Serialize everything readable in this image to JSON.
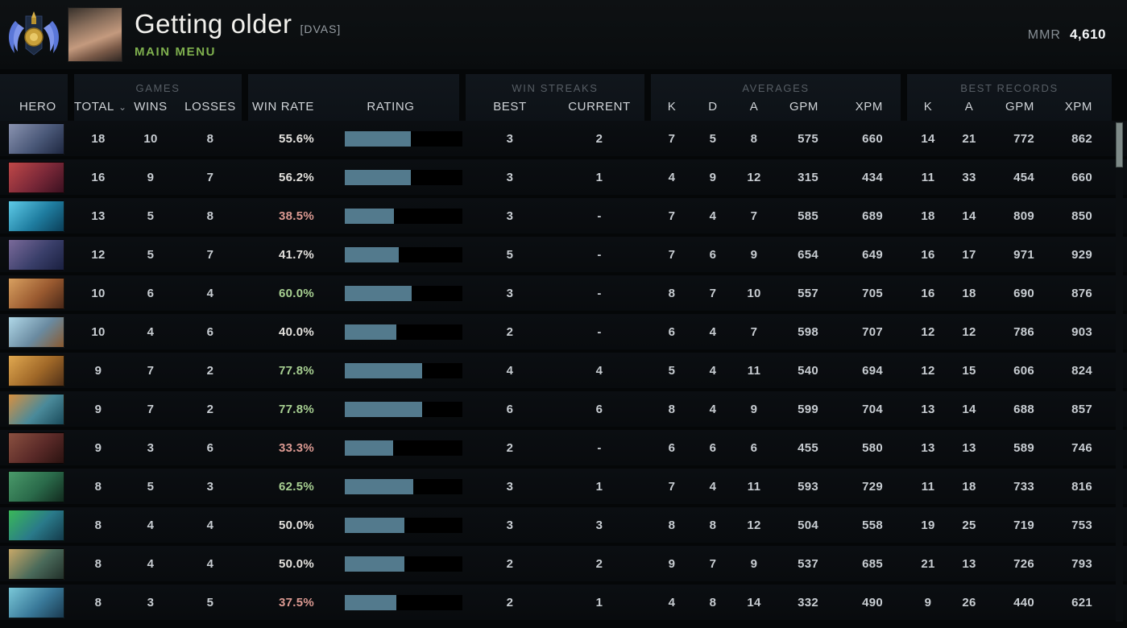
{
  "header": {
    "player_name": "Getting older",
    "player_tag": "[DVAS]",
    "menu_label": "MAIN MENU",
    "mmr_label": "MMR",
    "mmr_value": "4,610"
  },
  "table": {
    "group_headers": {
      "games": "GAMES",
      "win_streaks": "WIN STREAKS",
      "averages": "AVERAGES",
      "best_records": "BEST RECORDS"
    },
    "columns": {
      "hero": "HERO",
      "total": "TOTAL",
      "wins": "WINS",
      "losses": "LOSSES",
      "win_rate": "WIN RATE",
      "rating": "RATING",
      "best": "BEST",
      "current": "CURRENT",
      "k": "K",
      "d": "D",
      "a": "A",
      "gpm": "GPM",
      "xpm": "XPM"
    },
    "sorted_column": "total",
    "sort_chevron": "⌄"
  },
  "colors": {
    "win_rate_positive": "#a8d092",
    "win_rate_negative": "#dc9a92",
    "win_rate_neutral": "#e4e2de",
    "rating_bar_fill": "#537a8d",
    "rating_bar_track": "#000000",
    "menu_green": "#7fb04e"
  },
  "rows": [
    {
      "hero": "hero-1",
      "portrait": [
        "#8a93b0",
        "#4a5878",
        "#1e2740"
      ],
      "total": "18",
      "wins": "10",
      "losses": "8",
      "win_rate": "55.6%",
      "win_rate_tone": "neutral",
      "rating_fill": 56,
      "streak_best": "3",
      "streak_current": "2",
      "avg_k": "7",
      "avg_d": "5",
      "avg_a": "8",
      "avg_gpm": "575",
      "avg_xpm": "660",
      "best_k": "14",
      "best_a": "21",
      "best_gpm": "772",
      "best_xpm": "862"
    },
    {
      "hero": "hero-2",
      "portrait": [
        "#c04848",
        "#7a2838",
        "#3a1020"
      ],
      "total": "16",
      "wins": "9",
      "losses": "7",
      "win_rate": "56.2%",
      "win_rate_tone": "neutral",
      "rating_fill": 56,
      "streak_best": "3",
      "streak_current": "1",
      "avg_k": "4",
      "avg_d": "9",
      "avg_a": "12",
      "avg_gpm": "315",
      "avg_xpm": "434",
      "best_k": "11",
      "best_a": "33",
      "best_gpm": "454",
      "best_xpm": "660"
    },
    {
      "hero": "hero-3",
      "portrait": [
        "#5ecbe8",
        "#1f7da0",
        "#0b3e58"
      ],
      "total": "13",
      "wins": "5",
      "losses": "8",
      "win_rate": "38.5%",
      "win_rate_tone": "negative",
      "rating_fill": 42,
      "streak_best": "3",
      "streak_current": "-",
      "avg_k": "7",
      "avg_d": "4",
      "avg_a": "7",
      "avg_gpm": "585",
      "avg_xpm": "689",
      "best_k": "18",
      "best_a": "14",
      "best_gpm": "809",
      "best_xpm": "850"
    },
    {
      "hero": "hero-4",
      "portrait": [
        "#7a6a9a",
        "#3a3f6a",
        "#1a2040"
      ],
      "total": "12",
      "wins": "5",
      "losses": "7",
      "win_rate": "41.7%",
      "win_rate_tone": "neutral",
      "rating_fill": 46,
      "streak_best": "5",
      "streak_current": "-",
      "avg_k": "7",
      "avg_d": "6",
      "avg_a": "9",
      "avg_gpm": "654",
      "avg_xpm": "649",
      "best_k": "16",
      "best_a": "17",
      "best_gpm": "971",
      "best_xpm": "929"
    },
    {
      "hero": "hero-5",
      "portrait": [
        "#d8a060",
        "#9a5a30",
        "#4a2818"
      ],
      "total": "10",
      "wins": "6",
      "losses": "4",
      "win_rate": "60.0%",
      "win_rate_tone": "positive",
      "rating_fill": 57,
      "streak_best": "3",
      "streak_current": "-",
      "avg_k": "8",
      "avg_d": "7",
      "avg_a": "10",
      "avg_gpm": "557",
      "avg_xpm": "705",
      "best_k": "16",
      "best_a": "18",
      "best_gpm": "690",
      "best_xpm": "876"
    },
    {
      "hero": "hero-6",
      "portrait": [
        "#b0d8e8",
        "#6a8aa0",
        "#8a5a30"
      ],
      "total": "10",
      "wins": "4",
      "losses": "6",
      "win_rate": "40.0%",
      "win_rate_tone": "neutral",
      "rating_fill": 44,
      "streak_best": "2",
      "streak_current": "-",
      "avg_k": "6",
      "avg_d": "4",
      "avg_a": "7",
      "avg_gpm": "598",
      "avg_xpm": "707",
      "best_k": "12",
      "best_a": "12",
      "best_gpm": "786",
      "best_xpm": "903"
    },
    {
      "hero": "hero-7",
      "portrait": [
        "#e0a850",
        "#a06828",
        "#503018"
      ],
      "total": "9",
      "wins": "7",
      "losses": "2",
      "win_rate": "77.8%",
      "win_rate_tone": "positive",
      "rating_fill": 66,
      "streak_best": "4",
      "streak_current": "4",
      "avg_k": "5",
      "avg_d": "4",
      "avg_a": "11",
      "avg_gpm": "540",
      "avg_xpm": "694",
      "best_k": "12",
      "best_a": "15",
      "best_gpm": "606",
      "best_xpm": "824"
    },
    {
      "hero": "hero-8",
      "portrait": [
        "#d89040",
        "#4a8a9a",
        "#1a4a5a"
      ],
      "total": "9",
      "wins": "7",
      "losses": "2",
      "win_rate": "77.8%",
      "win_rate_tone": "positive",
      "rating_fill": 66,
      "streak_best": "6",
      "streak_current": "6",
      "avg_k": "8",
      "avg_d": "4",
      "avg_a": "9",
      "avg_gpm": "599",
      "avg_xpm": "704",
      "best_k": "13",
      "best_a": "14",
      "best_gpm": "688",
      "best_xpm": "857"
    },
    {
      "hero": "hero-9",
      "portrait": [
        "#8a5040",
        "#5a2a28",
        "#2a1210"
      ],
      "total": "9",
      "wins": "3",
      "losses": "6",
      "win_rate": "33.3%",
      "win_rate_tone": "negative",
      "rating_fill": 41,
      "streak_best": "2",
      "streak_current": "-",
      "avg_k": "6",
      "avg_d": "6",
      "avg_a": "6",
      "avg_gpm": "455",
      "avg_xpm": "580",
      "best_k": "13",
      "best_a": "13",
      "best_gpm": "589",
      "best_xpm": "746"
    },
    {
      "hero": "hero-10",
      "portrait": [
        "#4a9a6a",
        "#2a6a4a",
        "#122a1e"
      ],
      "total": "8",
      "wins": "5",
      "losses": "3",
      "win_rate": "62.5%",
      "win_rate_tone": "positive",
      "rating_fill": 58,
      "streak_best": "3",
      "streak_current": "1",
      "avg_k": "7",
      "avg_d": "4",
      "avg_a": "11",
      "avg_gpm": "593",
      "avg_xpm": "729",
      "best_k": "11",
      "best_a": "18",
      "best_gpm": "733",
      "best_xpm": "816"
    },
    {
      "hero": "hero-11",
      "portrait": [
        "#3ab858",
        "#2a7a8a",
        "#143a4a"
      ],
      "total": "8",
      "wins": "4",
      "losses": "4",
      "win_rate": "50.0%",
      "win_rate_tone": "neutral",
      "rating_fill": 51,
      "streak_best": "3",
      "streak_current": "3",
      "avg_k": "8",
      "avg_d": "8",
      "avg_a": "12",
      "avg_gpm": "504",
      "avg_xpm": "558",
      "best_k": "19",
      "best_a": "25",
      "best_gpm": "719",
      "best_xpm": "753"
    },
    {
      "hero": "hero-12",
      "portrait": [
        "#c8a868",
        "#4a6a5a",
        "#22302a"
      ],
      "total": "8",
      "wins": "4",
      "losses": "4",
      "win_rate": "50.0%",
      "win_rate_tone": "neutral",
      "rating_fill": 51,
      "streak_best": "2",
      "streak_current": "2",
      "avg_k": "9",
      "avg_d": "7",
      "avg_a": "9",
      "avg_gpm": "537",
      "avg_xpm": "685",
      "best_k": "21",
      "best_a": "13",
      "best_gpm": "726",
      "best_xpm": "793"
    },
    {
      "hero": "hero-13",
      "portrait": [
        "#7ac8d8",
        "#3a7a9a",
        "#1a3a50"
      ],
      "total": "8",
      "wins": "3",
      "losses": "5",
      "win_rate": "37.5%",
      "win_rate_tone": "negative",
      "rating_fill": 44,
      "streak_best": "2",
      "streak_current": "1",
      "avg_k": "4",
      "avg_d": "8",
      "avg_a": "14",
      "avg_gpm": "332",
      "avg_xpm": "490",
      "best_k": "9",
      "best_a": "26",
      "best_gpm": "440",
      "best_xpm": "621"
    }
  ]
}
